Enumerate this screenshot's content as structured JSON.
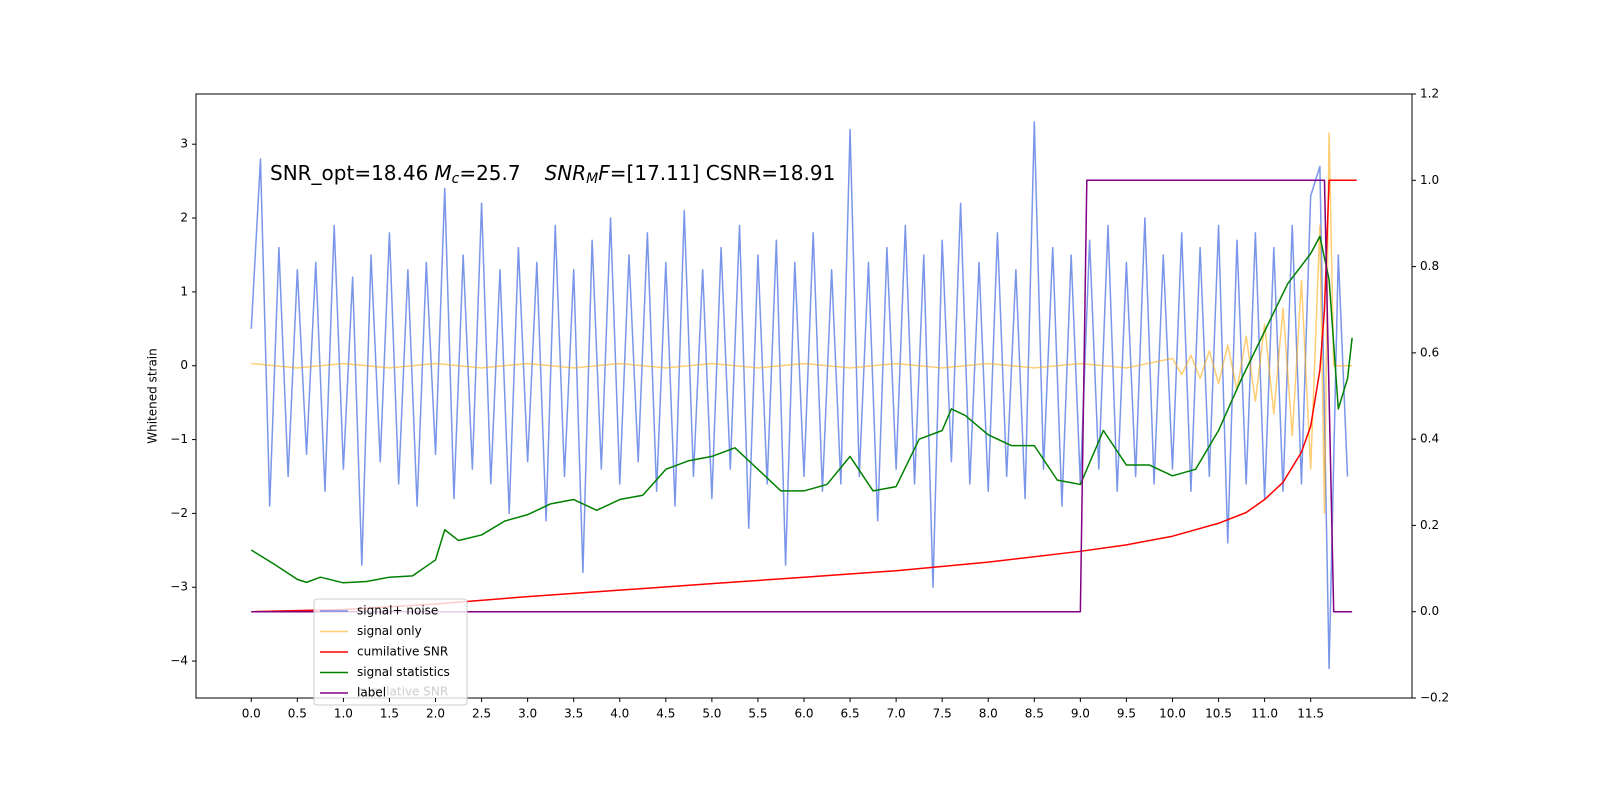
{
  "chart_data": {
    "type": "line",
    "annotation": [
      "SNR_opt=18.46",
      "M",
      "c",
      "=25.7",
      "SNR",
      "M",
      "F",
      "=[17.11] CSNR=18.91"
    ],
    "ylabel": "Whitened strain",
    "xlim": [
      -0.6,
      12.6
    ],
    "ylim": [
      -4.5,
      3.68
    ],
    "y2lim": [
      -0.2,
      1.2
    ],
    "xticks": [
      {
        "value": 0,
        "label": "0.0"
      },
      {
        "value": 0.5,
        "label": "0.5"
      },
      {
        "value": 1,
        "label": "1.0"
      },
      {
        "value": 1.5,
        "label": "1.5"
      },
      {
        "value": 2,
        "label": "2.0"
      },
      {
        "value": 2.5,
        "label": "2.5"
      },
      {
        "value": 3,
        "label": "3.0"
      },
      {
        "value": 3.5,
        "label": "3.5"
      },
      {
        "value": 4,
        "label": "4.0"
      },
      {
        "value": 4.5,
        "label": "4.5"
      },
      {
        "value": 5,
        "label": "5.0"
      },
      {
        "value": 5.5,
        "label": "5.5"
      },
      {
        "value": 6,
        "label": "6.0"
      },
      {
        "value": 6.5,
        "label": "6.5"
      },
      {
        "value": 7,
        "label": "7.0"
      },
      {
        "value": 7.5,
        "label": "7.5"
      },
      {
        "value": 8,
        "label": "8.0"
      },
      {
        "value": 8.5,
        "label": "8.5"
      },
      {
        "value": 9,
        "label": "9.0"
      },
      {
        "value": 9.5,
        "label": "9.5"
      },
      {
        "value": 10,
        "label": "10.0"
      },
      {
        "value": 10.5,
        "label": "10.5"
      },
      {
        "value": 11,
        "label": "11.0"
      },
      {
        "value": 11.5,
        "label": "11.5"
      }
    ],
    "yticks": [
      {
        "value": -4,
        "label": "−4"
      },
      {
        "value": -3,
        "label": "−3"
      },
      {
        "value": -2,
        "label": "−2"
      },
      {
        "value": -1,
        "label": "−1"
      },
      0,
      1,
      2,
      3
    ],
    "y2ticks": [
      {
        "value": -0.2,
        "label": "−0.2"
      },
      {
        "value": 0,
        "label": "0.0"
      },
      {
        "value": 0.2,
        "label": "0.2"
      },
      {
        "value": 0.4,
        "label": "0.4"
      },
      {
        "value": 0.6,
        "label": "0.6"
      },
      {
        "value": 0.8,
        "label": "0.8"
      },
      {
        "value": 1,
        "label": "1.0"
      },
      {
        "value": 1.2,
        "label": "1.2"
      }
    ],
    "series": [
      {
        "name": "signal+ noise",
        "color": "#4169e1",
        "alpha": 0.7,
        "x": [
          0,
          0.1,
          0.2,
          0.3,
          0.4,
          0.5,
          0.6,
          0.7,
          0.8,
          0.9,
          1,
          1.1,
          1.2,
          1.3,
          1.4,
          1.5,
          1.6,
          1.7,
          1.8,
          1.9,
          2,
          2.1,
          2.2,
          2.3,
          2.4,
          2.5,
          2.6,
          2.7,
          2.8,
          2.9,
          3,
          3.1,
          3.2,
          3.3,
          3.4,
          3.5,
          3.6,
          3.7,
          3.8,
          3.9,
          4,
          4.1,
          4.2,
          4.3,
          4.4,
          4.5,
          4.6,
          4.7,
          4.8,
          4.9,
          5,
          5.1,
          5.2,
          5.3,
          5.4,
          5.5,
          5.6,
          5.7,
          5.8,
          5.9,
          6,
          6.1,
          6.2,
          6.3,
          6.4,
          6.5,
          6.6,
          6.7,
          6.8,
          6.9,
          7,
          7.1,
          7.2,
          7.3,
          7.4,
          7.5,
          7.6,
          7.7,
          7.8,
          7.9,
          8,
          8.1,
          8.2,
          8.3,
          8.4,
          8.5,
          8.6,
          8.7,
          8.8,
          8.9,
          9,
          9.1,
          9.2,
          9.3,
          9.4,
          9.5,
          9.6,
          9.7,
          9.8,
          9.9,
          10,
          10.1,
          10.2,
          10.3,
          10.4,
          10.5,
          10.6,
          10.7,
          10.8,
          10.9,
          11,
          11.1,
          11.2,
          11.3,
          11.4,
          11.5,
          11.6,
          11.7,
          11.8,
          11.9
        ],
        "values": [
          0.5,
          2.8,
          -1.9,
          1.6,
          -1.5,
          1.3,
          -1.2,
          1.4,
          -1.7,
          1.9,
          -1.4,
          1.2,
          -2.7,
          1.5,
          -1.3,
          1.8,
          -1.6,
          1.3,
          -1.9,
          1.4,
          -1.2,
          2.4,
          -1.8,
          1.5,
          -1.4,
          2.2,
          -1.6,
          1.3,
          -2.0,
          1.6,
          -1.3,
          1.4,
          -2.1,
          1.9,
          -1.5,
          1.3,
          -2.8,
          1.7,
          -1.4,
          2.0,
          -1.6,
          1.5,
          -1.3,
          1.8,
          -1.7,
          1.4,
          -1.9,
          2.1,
          -1.5,
          1.3,
          -1.8,
          1.6,
          -1.4,
          1.9,
          -2.2,
          1.5,
          -1.6,
          1.7,
          -2.7,
          1.4,
          -1.5,
          1.8,
          -1.7,
          1.3,
          -1.6,
          3.2,
          -1.5,
          1.4,
          -2.1,
          1.6,
          -1.4,
          1.9,
          -1.6,
          1.5,
          -3.0,
          1.7,
          -1.3,
          2.2,
          -1.6,
          1.4,
          -1.7,
          1.8,
          -1.5,
          1.3,
          -1.8,
          3.3,
          -1.4,
          1.6,
          -1.9,
          1.5,
          -1.6,
          1.7,
          -1.4,
          1.9,
          -1.7,
          1.4,
          -1.5,
          2.0,
          -1.6,
          1.5,
          -1.4,
          1.8,
          -1.7,
          1.6,
          -1.5,
          1.9,
          -2.4,
          1.7,
          -1.6,
          1.8,
          -1.8,
          1.6,
          -1.7,
          1.9,
          -1.6,
          2.3,
          2.7,
          -4.1,
          1.5,
          -1.5
        ]
      },
      {
        "name": "signal only",
        "color": "#ffa500",
        "alpha": 0.55,
        "x": [
          0,
          0.5,
          1,
          1.5,
          2,
          2.5,
          3,
          3.5,
          4,
          4.5,
          5,
          5.5,
          6,
          6.5,
          7,
          7.5,
          8,
          8.5,
          9,
          9.5,
          10,
          10.1,
          10.2,
          10.3,
          10.4,
          10.5,
          10.6,
          10.7,
          10.8,
          10.9,
          11,
          11.1,
          11.2,
          11.3,
          11.4,
          11.5,
          11.6,
          11.65,
          11.7,
          11.75,
          11.95
        ],
        "values": [
          0.03,
          -0.03,
          0.03,
          -0.03,
          0.03,
          -0.03,
          0.03,
          -0.03,
          0.03,
          -0.03,
          0.03,
          -0.03,
          0.03,
          -0.03,
          0.03,
          -0.03,
          0.03,
          -0.03,
          0.03,
          -0.03,
          0.1,
          -0.12,
          0.14,
          -0.17,
          0.2,
          -0.24,
          0.28,
          -0.33,
          0.4,
          -0.48,
          0.56,
          -0.65,
          0.78,
          -0.95,
          1.15,
          -1.4,
          1.9,
          -2.0,
          3.15,
          0,
          0
        ]
      },
      {
        "name": "cumilative SNR",
        "color": "#ff0000",
        "alpha": 1,
        "axis": "y2",
        "x": [
          0,
          1,
          2,
          3,
          4,
          5,
          6,
          7,
          8,
          9,
          9.5,
          10,
          10.5,
          10.8,
          11,
          11.2,
          11.4,
          11.5,
          11.6,
          11.65,
          11.7,
          12
        ],
        "values": [
          0,
          0.005,
          0.018,
          0.035,
          0.05,
          0.065,
          0.08,
          0.095,
          0.115,
          0.14,
          0.155,
          0.175,
          0.205,
          0.23,
          0.26,
          0.3,
          0.37,
          0.43,
          0.56,
          0.7,
          1.0,
          1.0
        ]
      },
      {
        "name": "signal statistics",
        "color": "#008000",
        "alpha": 1,
        "axis": "y2",
        "x": [
          0,
          0.25,
          0.5,
          0.6,
          0.75,
          1,
          1.25,
          1.5,
          1.75,
          2,
          2.1,
          2.25,
          2.5,
          2.75,
          3,
          3.25,
          3.5,
          3.75,
          4,
          4.25,
          4.5,
          4.75,
          5,
          5.25,
          5.5,
          5.75,
          6,
          6.25,
          6.5,
          6.75,
          7,
          7.25,
          7.5,
          7.6,
          7.75,
          8,
          8.25,
          8.5,
          8.75,
          9,
          9.25,
          9.5,
          9.75,
          10,
          10.25,
          10.5,
          10.75,
          11,
          11.25,
          11.5,
          11.6,
          11.7,
          11.8,
          11.9,
          11.95
        ],
        "values": [
          0.143,
          0.11,
          0.075,
          0.068,
          0.08,
          0.067,
          0.07,
          0.08,
          0.083,
          0.12,
          0.19,
          0.165,
          0.178,
          0.21,
          0.225,
          0.25,
          0.26,
          0.235,
          0.26,
          0.27,
          0.33,
          0.35,
          0.36,
          0.38,
          0.33,
          0.28,
          0.28,
          0.295,
          0.36,
          0.28,
          0.29,
          0.4,
          0.42,
          0.47,
          0.455,
          0.41,
          0.385,
          0.385,
          0.305,
          0.295,
          0.42,
          0.34,
          0.34,
          0.315,
          0.33,
          0.42,
          0.54,
          0.65,
          0.76,
          0.83,
          0.87,
          0.77,
          0.47,
          0.54,
          0.635
        ]
      },
      {
        "name": "label",
        "color": "#800080",
        "alpha": 1,
        "axis": "y2",
        "x": [
          0,
          9.0,
          9.07,
          11.65,
          11.75,
          11.95
        ],
        "values": [
          0,
          0,
          1,
          1,
          0,
          0
        ]
      }
    ]
  }
}
